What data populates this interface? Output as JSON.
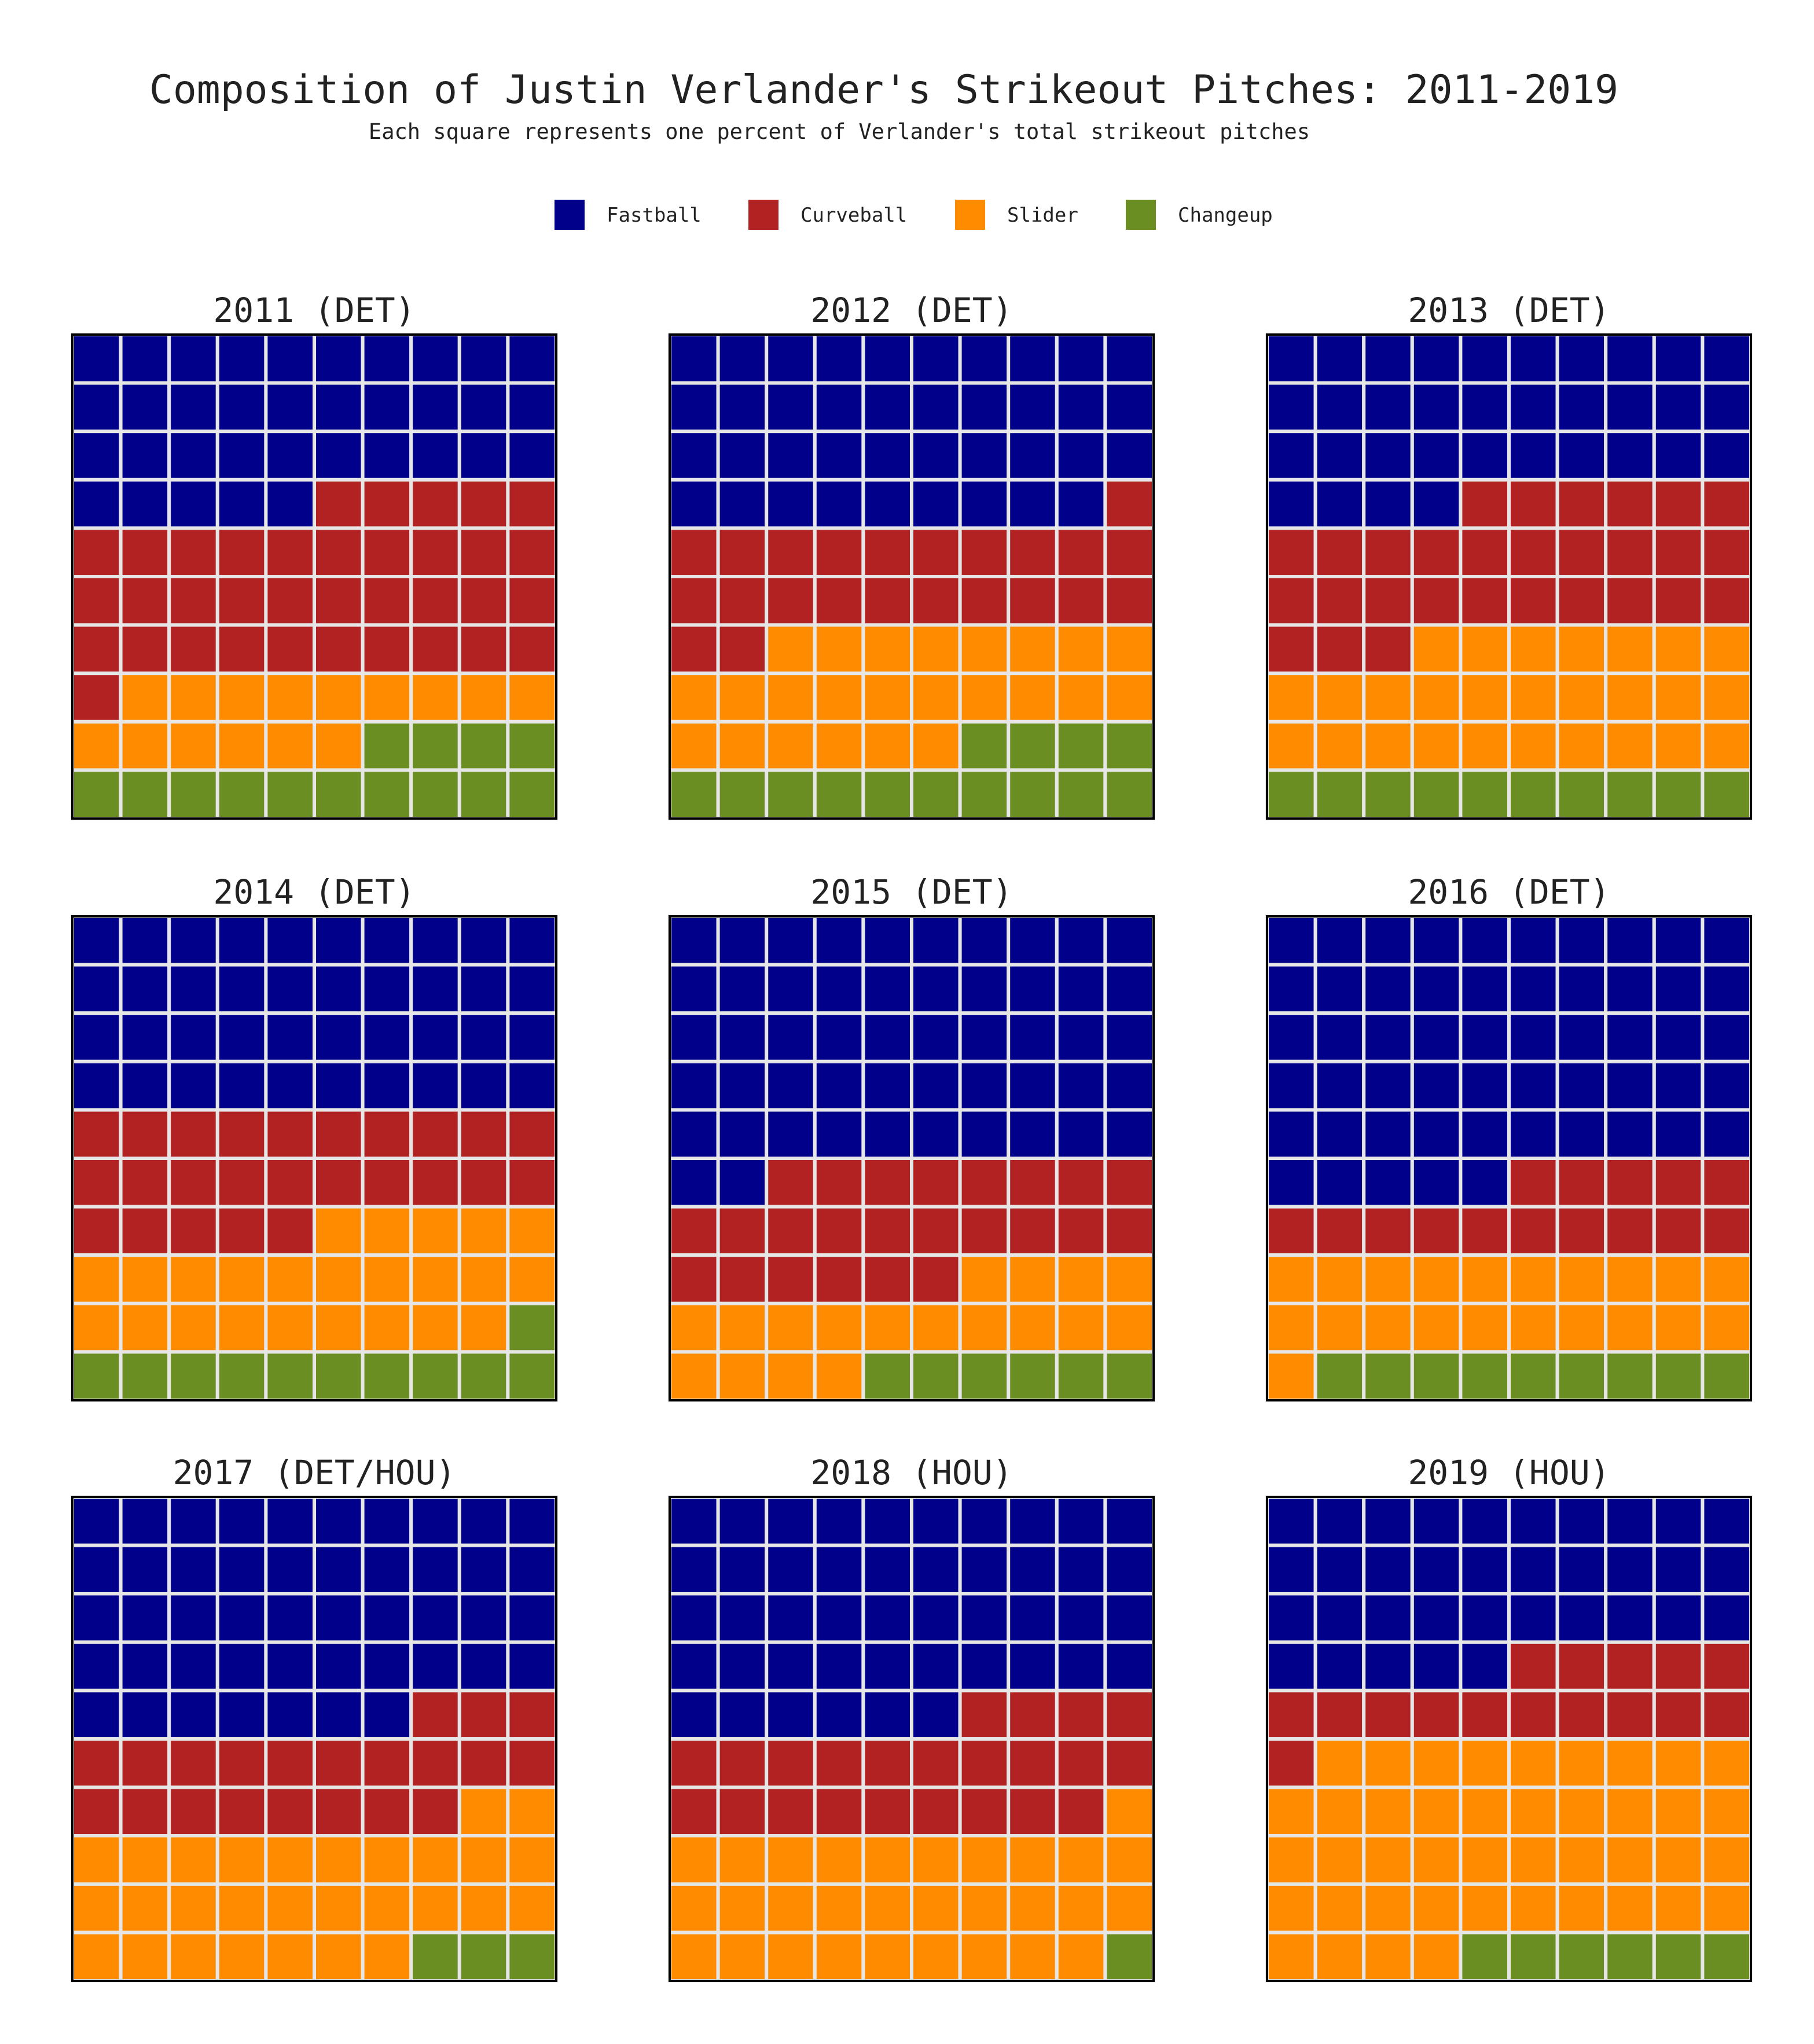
{
  "chart_data": {
    "type": "waffle",
    "title": "Composition of Justin Verlander's Strikeout Pitches: 2011-2019",
    "subtitle": "Each square represents one percent of Verlander's total strikeout pitches",
    "legend": {
      "placement": "top-center",
      "entries": [
        {
          "label": "Fastball",
          "color": "#00008b"
        },
        {
          "label": "Curveball",
          "color": "#b22222"
        },
        {
          "label": "Slider",
          "color": "#ff8c00"
        },
        {
          "label": "Changeup",
          "color": "#6b8e23"
        }
      ]
    },
    "grid_lines_color": "#e6e6e6",
    "panels": [
      {
        "label": "2011 (DET)",
        "values": [
          35,
          36,
          15,
          14
        ]
      },
      {
        "label": "2012 (DET)",
        "values": [
          39,
          23,
          24,
          14
        ]
      },
      {
        "label": "2013 (DET)",
        "values": [
          34,
          29,
          27,
          10
        ]
      },
      {
        "label": "2014 (DET)",
        "values": [
          40,
          25,
          24,
          11
        ]
      },
      {
        "label": "2015 (DET)",
        "values": [
          52,
          24,
          18,
          6
        ]
      },
      {
        "label": "2016 (DET)",
        "values": [
          55,
          15,
          21,
          9
        ]
      },
      {
        "label": "2017 (DET/HOU)",
        "values": [
          47,
          21,
          29,
          3
        ]
      },
      {
        "label": "2018 (HOU)",
        "values": [
          46,
          23,
          30,
          1
        ]
      },
      {
        "label": "2019 (HOU)",
        "values": [
          35,
          16,
          43,
          6
        ]
      }
    ]
  }
}
